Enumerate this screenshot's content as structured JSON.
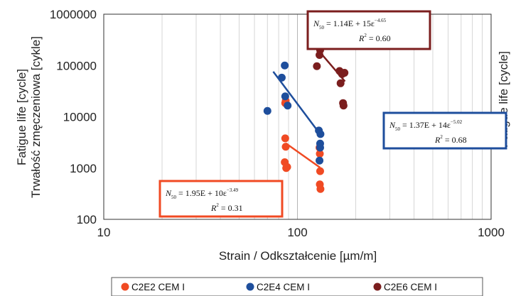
{
  "chart_data": {
    "type": "scatter",
    "x_scale": "log",
    "y_scale": "log",
    "xlim": [
      10,
      1000
    ],
    "ylim": [
      100,
      1000000
    ],
    "x_ticks": [
      "10",
      "100",
      "1000"
    ],
    "y_ticks": [
      "1000000",
      "100000",
      "10000",
      "1000",
      "100"
    ],
    "xlabel": "Strain / Odkształcenie [µm/m]",
    "ylabel_line1": "Fatigue life [cycle]",
    "ylabel_line2": "Trwałość zmęczeniowa [cykle]",
    "right_ylabel_fragment": "Fatigue life [cycle]",
    "grid": "vertical minor and major log lines",
    "legend_position": "bottom",
    "series": [
      {
        "name": "C2E2 CEM I",
        "color": "#f04a23",
        "points": [
          [
            86.5,
            3800
          ],
          [
            87,
            2600
          ],
          [
            86,
            1300
          ],
          [
            87.5,
            1000
          ],
          [
            88.5,
            1050
          ],
          [
            86.5,
            18500
          ],
          [
            87,
            20500
          ],
          [
            130,
            2500
          ],
          [
            130.5,
            1900
          ],
          [
            131,
            870
          ],
          [
            130.5,
            480
          ],
          [
            131.5,
            390
          ]
        ],
        "fit": {
          "x_from": 87,
          "x_to": 131,
          "y_from": 3050,
          "y_to": 1020
        },
        "equation": {
          "label": "N",
          "sub": "50",
          "text": "= 1.95E + 10ε",
          "exp": "−3.49",
          "r2_label": "R",
          "r2_exp": "2",
          "r2_text": "= 0.31"
        }
      },
      {
        "name": "C2E4 CEM I",
        "color": "#1e4e9c",
        "points": [
          [
            70,
            13000
          ],
          [
            83,
            58000
          ],
          [
            86,
            100000
          ],
          [
            86.5,
            25000
          ],
          [
            89,
            16500
          ],
          [
            129,
            5400
          ],
          [
            131.5,
            4600
          ],
          [
            131,
            3000
          ],
          [
            131,
            2500
          ],
          [
            130,
            1400
          ]
        ],
        "fit": {
          "x_from": 75,
          "x_to": 132,
          "y_from": 76000,
          "y_to": 4400
        },
        "equation": {
          "label": "N",
          "sub": "50",
          "text": "= 1.37E + 14ε",
          "exp": "−5.02",
          "r2_label": "R",
          "r2_exp": "2",
          "r2_text": "= 0.68"
        }
      },
      {
        "name": "C2E6 CEM I",
        "color": "#7b1e1e",
        "points": [
          [
            126,
            97000
          ],
          [
            131,
            200000
          ],
          [
            130,
            160000
          ],
          [
            165,
            78000
          ],
          [
            168,
            73000
          ],
          [
            170,
            68000
          ],
          [
            167,
            45000
          ],
          [
            175,
            72000
          ],
          [
            172,
            18500
          ],
          [
            173,
            16500
          ]
        ],
        "fit": {
          "x_from": 131,
          "x_to": 176,
          "y_from": 180000,
          "y_to": 49000
        },
        "equation": {
          "label": "N",
          "sub": "50",
          "text": "= 1.14E + 15ε",
          "exp": "−4.65",
          "r2_label": "R",
          "r2_exp": "2",
          "r2_text": "= 0.60"
        }
      }
    ]
  }
}
